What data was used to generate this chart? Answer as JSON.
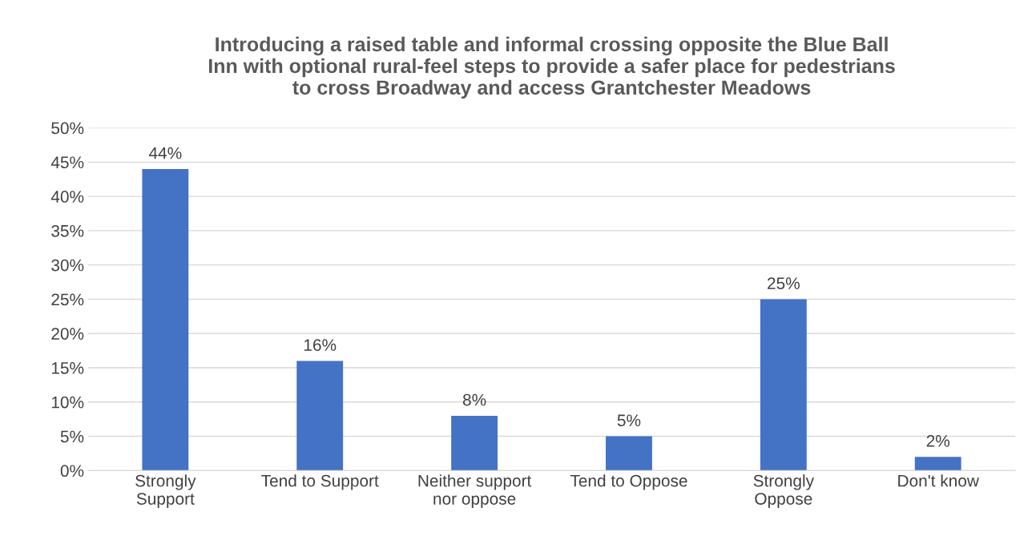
{
  "chart_data": {
    "type": "bar",
    "title": "Introducing a raised table and informal crossing opposite the Blue Ball\nInn with optional rural-feel steps to provide a safer place for pedestrians\nto cross Broadway and access Grantchester Meadows",
    "categories": [
      "Strongly\nSupport",
      "Tend to Support",
      "Neither support\nnor oppose",
      "Tend to Oppose",
      "Strongly\nOppose",
      "Don't know"
    ],
    "values": [
      44,
      16,
      8,
      5,
      25,
      2
    ],
    "value_labels": [
      "44%",
      "16%",
      "8%",
      "5%",
      "25%",
      "2%"
    ],
    "color": "#4472c4",
    "ylim": [
      0,
      50
    ],
    "yticks": [
      {
        "value": 0,
        "label": "0%"
      },
      {
        "value": 5,
        "label": "5%"
      },
      {
        "value": 10,
        "label": "10%"
      },
      {
        "value": 15,
        "label": "15%"
      },
      {
        "value": 20,
        "label": "20%"
      },
      {
        "value": 25,
        "label": "25%"
      },
      {
        "value": 30,
        "label": "30%"
      },
      {
        "value": 35,
        "label": "35%"
      },
      {
        "value": 40,
        "label": "40%"
      },
      {
        "value": 45,
        "label": "45%"
      },
      {
        "value": 50,
        "label": "50%"
      }
    ],
    "grid": "y"
  }
}
